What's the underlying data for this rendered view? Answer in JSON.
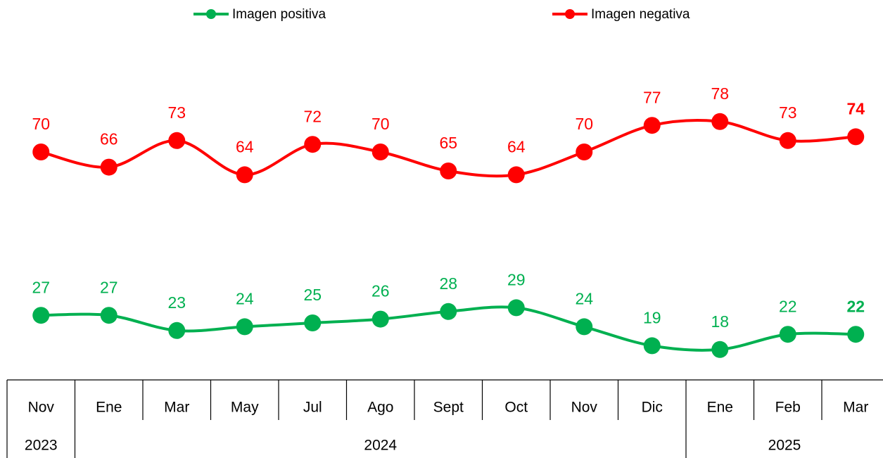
{
  "chart_data": {
    "type": "line",
    "categories": [
      "Nov",
      "Ene",
      "Mar",
      "May",
      "Jul",
      "Ago",
      "Sept",
      "Oct",
      "Nov",
      "Dic",
      "Ene",
      "Feb",
      "Mar"
    ],
    "year_groups": [
      {
        "label": "2023",
        "span": 1
      },
      {
        "label": "2024",
        "span": 9
      },
      {
        "label": "2025",
        "span": 3
      }
    ],
    "series": [
      {
        "name": "Imagen positiva",
        "color": "#00b050",
        "values": [
          27,
          27,
          23,
          24,
          25,
          26,
          28,
          29,
          24,
          19,
          18,
          22,
          22
        ]
      },
      {
        "name": "Imagen negativa",
        "color": "#ff0000",
        "values": [
          70,
          66,
          73,
          64,
          72,
          70,
          65,
          64,
          70,
          77,
          78,
          73,
          74
        ]
      }
    ],
    "ylim": [
      10,
      110
    ],
    "legend": "top",
    "smooth": true
  }
}
